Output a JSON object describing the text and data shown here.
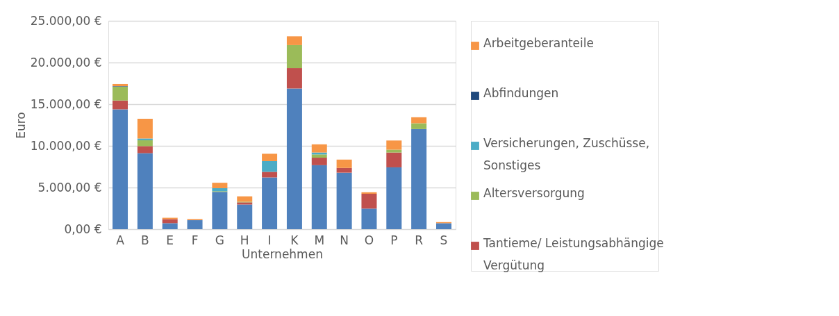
{
  "chart_data": {
    "type": "bar",
    "stacked": true,
    "xlabel": "Unternehmen",
    "ylabel": "Euro",
    "categories": [
      "A",
      "B",
      "E",
      "F",
      "G",
      "H",
      "I",
      "K",
      "M",
      "N",
      "O",
      "P",
      "R",
      "S"
    ],
    "series": [
      {
        "color": "#4f81bd",
        "values": [
          14380,
          9120,
          720,
          1080,
          4480,
          2960,
          6210,
          16880,
          7680,
          6780,
          2470,
          7420,
          12010,
          720
        ]
      },
      {
        "name": "Tantieme/ Leistungsabhängige Vergütung",
        "color": "#c0504d",
        "values": [
          1060,
          850,
          490,
          0,
          0,
          260,
          670,
          2450,
          900,
          570,
          1780,
          1780,
          0,
          0
        ]
      },
      {
        "name": "Altersversorgung",
        "color": "#9bbb59",
        "values": [
          1670,
          700,
          0,
          0,
          80,
          80,
          0,
          2760,
          390,
          0,
          0,
          340,
          700,
          0
        ]
      },
      {
        "name": "Versicherungen, Zuschüsse, Sonstiges",
        "color": "#4bacc6",
        "values": [
          0,
          210,
          0,
          0,
          360,
          0,
          1290,
          0,
          230,
          0,
          0,
          0,
          0,
          0
        ]
      },
      {
        "name": "Abfindungen",
        "color": "#1f497d",
        "values": [
          50,
          0,
          0,
          0,
          0,
          0,
          0,
          0,
          0,
          0,
          0,
          0,
          0,
          0
        ]
      },
      {
        "name": "Arbeitgeberanteile",
        "color": "#f79646",
        "values": [
          260,
          2370,
          160,
          130,
          650,
          640,
          880,
          1050,
          980,
          1000,
          180,
          1100,
          720,
          130
        ]
      }
    ],
    "ylim": [
      0,
      25000
    ],
    "yticks": [
      {
        "value": 0,
        "label": "0,00 €"
      },
      {
        "value": 5000,
        "label": "5.000,00 €"
      },
      {
        "value": 10000,
        "label": "10.000,00 €"
      },
      {
        "value": 15000,
        "label": "15.000,00 €"
      },
      {
        "value": 20000,
        "label": "20.000,00 €"
      },
      {
        "value": 25000,
        "label": "25.000,00 €"
      }
    ],
    "grid": "y",
    "legend": "right"
  }
}
